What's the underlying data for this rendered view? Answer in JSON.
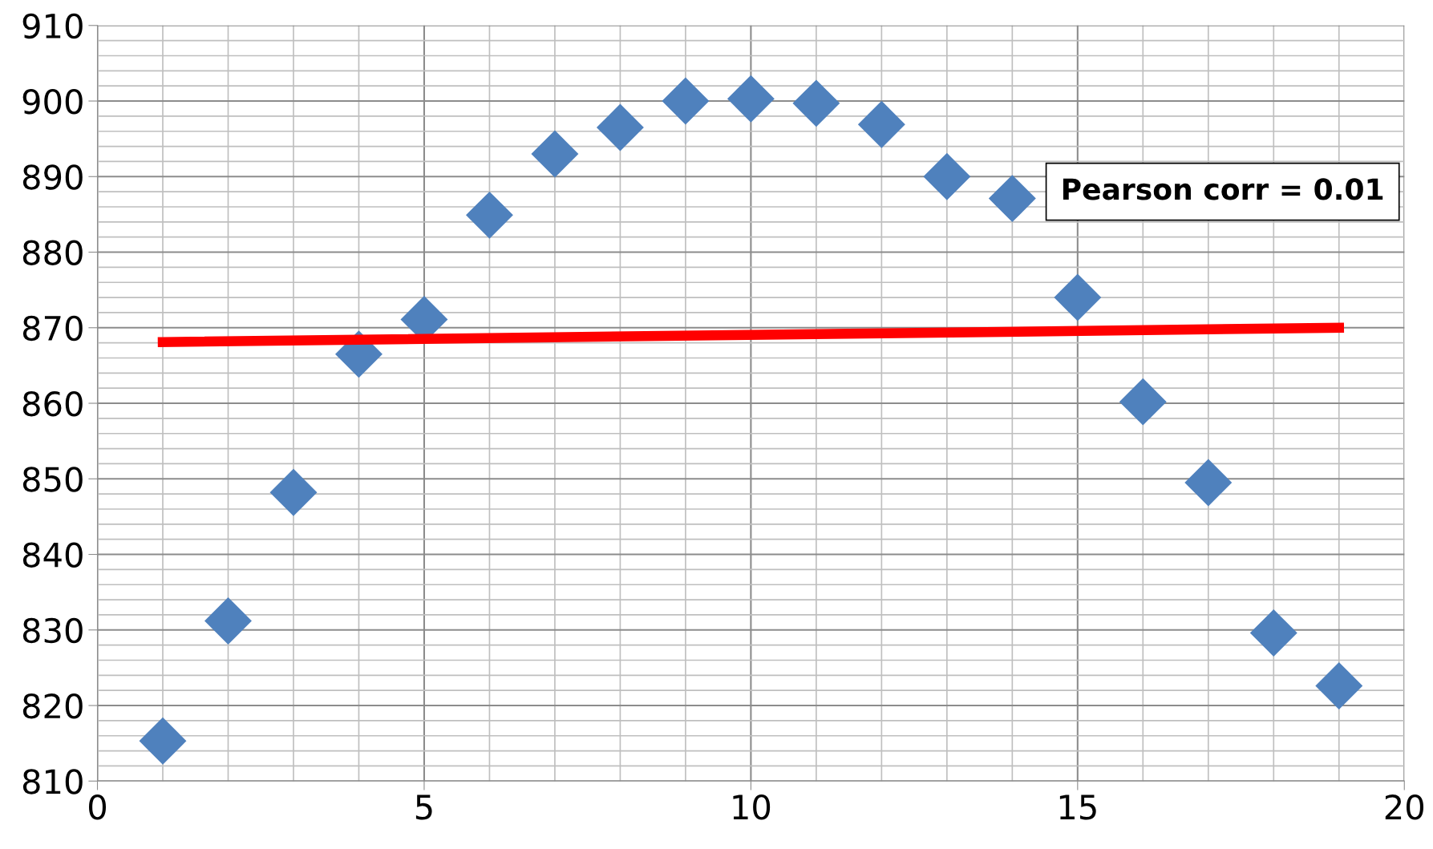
{
  "chart_data": {
    "type": "scatter",
    "grid": true,
    "x": [
      1,
      2,
      3,
      4,
      5,
      6,
      7,
      8,
      9,
      10,
      11,
      12,
      13,
      14,
      15,
      16,
      17,
      18,
      19
    ],
    "series": [
      {
        "color": "#4f81bd",
        "marker": "diamond",
        "values": [
          815.3,
          831.2,
          848.2,
          866.5,
          871.1,
          884.9,
          893.0,
          896.5,
          900.0,
          900.3,
          899.7,
          896.9,
          890.0,
          887.1,
          874.0,
          860.2,
          849.5,
          829.6,
          822.6
        ]
      },
      {
        "type": "line",
        "color": "#ff0000",
        "marker": "none",
        "x": [
          1,
          19
        ],
        "values": [
          868.1,
          870.0
        ]
      }
    ],
    "xlim": [
      0,
      20
    ],
    "xticks": [
      0,
      5,
      10,
      15,
      20
    ],
    "ylim": [
      810,
      910
    ],
    "yticks": [
      810,
      820,
      830,
      840,
      850,
      860,
      870,
      880,
      890,
      900,
      910
    ],
    "annotations": [
      "Pearson corr = 0.01"
    ]
  }
}
